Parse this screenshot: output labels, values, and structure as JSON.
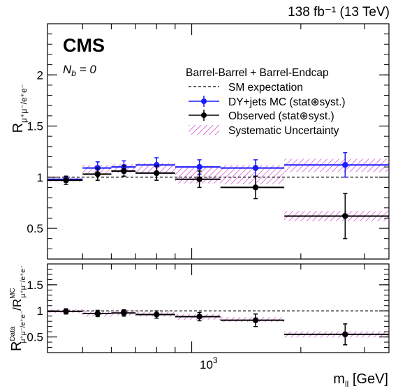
{
  "header": {
    "lumi": "138 fb⁻¹ (13 TeV)",
    "experiment": "CMS",
    "selection_label": "N",
    "selection_sub": "b",
    "selection_value": " = 0"
  },
  "chart_data": [
    {
      "type": "scatter",
      "panel": "main",
      "ylabel_main": "R",
      "ylabel_sub": "μ⁺μ⁻/e⁺e⁻",
      "xlim": [
        400,
        3500
      ],
      "ylim": [
        0.2,
        2.5
      ],
      "yticks": [
        "0.5",
        "1",
        "1.5",
        "2"
      ],
      "log_x": true,
      "legend": {
        "header": "Barrel-Barrel + Barrel-Endcap",
        "placement": "top-right",
        "entries": [
          "SM expectation",
          "DY+jets MC (stat⊕syst.)",
          "Observed (stat⊕syst.)",
          "Systematic Uncertainty"
        ]
      },
      "sm_expectation": 1.0,
      "bins": [
        {
          "lo": 400,
          "hi": 500,
          "center": 450,
          "mc": 0.98,
          "mc_err": 0.03,
          "obs": 0.97,
          "obs_err": 0.04,
          "sys_lo": 0.955,
          "sys_hi": 1.005
        },
        {
          "lo": 500,
          "hi": 600,
          "center": 550,
          "mc": 1.09,
          "mc_err": 0.06,
          "obs": 1.03,
          "obs_err": 0.06,
          "sys_lo": 1.02,
          "sys_hi": 1.12
        },
        {
          "lo": 600,
          "hi": 700,
          "center": 650,
          "mc": 1.1,
          "mc_err": 0.06,
          "obs": 1.06,
          "obs_err": 0.05,
          "sys_lo": 1.04,
          "sys_hi": 1.13
        },
        {
          "lo": 700,
          "hi": 900,
          "center": 800,
          "mc": 1.12,
          "mc_err": 0.07,
          "obs": 1.04,
          "obs_err": 0.07,
          "sys_lo": 1.03,
          "sys_hi": 1.14
        },
        {
          "lo": 900,
          "hi": 1200,
          "center": 1050,
          "mc": 1.1,
          "mc_err": 0.07,
          "obs": 0.98,
          "obs_err": 0.08,
          "sys_lo": 0.94,
          "sys_hi": 1.11
        },
        {
          "lo": 1200,
          "hi": 1800,
          "center": 1500,
          "mc": 1.09,
          "mc_err": 0.08,
          "obs": 0.9,
          "obs_err": 0.11,
          "sys_lo": 0.93,
          "sys_hi": 1.12
        },
        {
          "lo": 1800,
          "hi": 3500,
          "center": 2650,
          "mc": 1.12,
          "mc_err": 0.12,
          "obs": 0.62,
          "obs_err": 0.22,
          "sys_lo": 1.05,
          "sys_hi": 1.18
        }
      ],
      "observed_sys_band_last": {
        "lo": 0.57,
        "hi": 0.67
      }
    },
    {
      "type": "scatter",
      "panel": "ratio",
      "ylabel_main": "R",
      "ylabel_num_sup": "Data",
      "ylabel_num_sub": "μ⁺μ⁻/e⁺e⁻",
      "ylabel_den_sup": "MC",
      "ylabel_den_sub": "μ⁺μ⁻/e⁺e⁻",
      "xlabel_main": "m",
      "xlabel_sub": "ll",
      "xlabel_unit": " [GeV]",
      "xtick": "10",
      "xtick_exp": "3",
      "ylim": [
        0.2,
        1.9
      ],
      "yticks": [
        "0.5",
        "1",
        "1.5"
      ],
      "reference": 1.0,
      "bins": [
        {
          "lo": 400,
          "hi": 500,
          "center": 450,
          "ratio": 0.99,
          "err": 0.05,
          "sys_lo": 0.96,
          "sys_hi": 1.03
        },
        {
          "lo": 500,
          "hi": 600,
          "center": 550,
          "ratio": 0.95,
          "err": 0.06,
          "sys_lo": 0.89,
          "sys_hi": 1.0
        },
        {
          "lo": 600,
          "hi": 700,
          "center": 650,
          "ratio": 0.96,
          "err": 0.06,
          "sys_lo": 0.91,
          "sys_hi": 1.01
        },
        {
          "lo": 700,
          "hi": 900,
          "center": 800,
          "ratio": 0.93,
          "err": 0.07,
          "sys_lo": 0.89,
          "sys_hi": 0.99
        },
        {
          "lo": 900,
          "hi": 1200,
          "center": 1050,
          "ratio": 0.89,
          "err": 0.08,
          "sys_lo": 0.83,
          "sys_hi": 0.94
        },
        {
          "lo": 1200,
          "hi": 1800,
          "center": 1500,
          "ratio": 0.82,
          "err": 0.12,
          "sys_lo": 0.79,
          "sys_hi": 0.88
        },
        {
          "lo": 1800,
          "hi": 3500,
          "center": 2650,
          "ratio": 0.55,
          "err": 0.2,
          "sys_lo": 0.49,
          "sys_hi": 0.61
        }
      ]
    }
  ],
  "colors": {
    "mc": "#1a1aff",
    "observed": "#000000",
    "systematic": "#cc33cc"
  }
}
